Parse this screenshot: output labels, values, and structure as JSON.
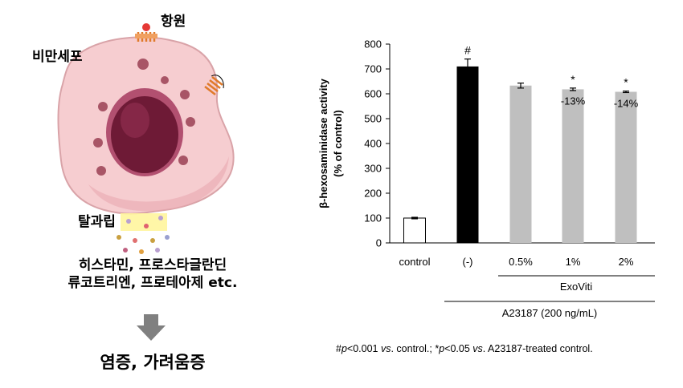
{
  "illustration": {
    "cell_label": "비만세포",
    "antigen_label": "항원",
    "degranulation_label": "탈과립",
    "mediators_line1": "히스타민, 프로스타글란딘",
    "mediators_line2": "류코트리엔, 프로테아제 etc.",
    "outcome": "염증, 가려움증",
    "colors": {
      "cell": "#f4c6c8",
      "nucleus": "#7a1f3d",
      "granule": "#b85a6a",
      "receptor": "#e88a3a",
      "antigen": "#e53935",
      "arrow": "#808080",
      "highlight": "#fff59d"
    }
  },
  "chart_data": {
    "type": "bar",
    "categories": [
      "control",
      "(-)",
      "0.5%",
      "1%",
      "2%"
    ],
    "values": [
      100,
      710,
      633,
      618,
      608
    ],
    "errors": [
      3,
      30,
      10,
      5,
      3
    ],
    "bar_colors": [
      "#ffffff",
      "#000000",
      "#bfbfbf",
      "#bfbfbf",
      "#bfbfbf"
    ],
    "bar_annotations": [
      "",
      "#",
      "",
      "*",
      "*"
    ],
    "percent_labels": [
      "",
      "",
      "",
      "-13%",
      "-14%"
    ],
    "ylabel_line1": "β-hexosaminidase activity",
    "ylabel_line2": "(% of control)",
    "ylim": [
      0,
      800
    ],
    "yticks": [
      0,
      100,
      200,
      300,
      400,
      500,
      600,
      700,
      800
    ],
    "group_labels": {
      "exoviti": "ExoViti",
      "a23187": "A23187 (200 ng/mL)"
    },
    "grid": false
  },
  "footnote": {
    "hash": "#",
    "p1": "p",
    "t1": "<0.001 ",
    "vs1": "vs",
    "t2": ". control.; *",
    "p2": "p",
    "t3": "<0.05 ",
    "vs2": "vs",
    "t4": ". A23187-treated control."
  }
}
